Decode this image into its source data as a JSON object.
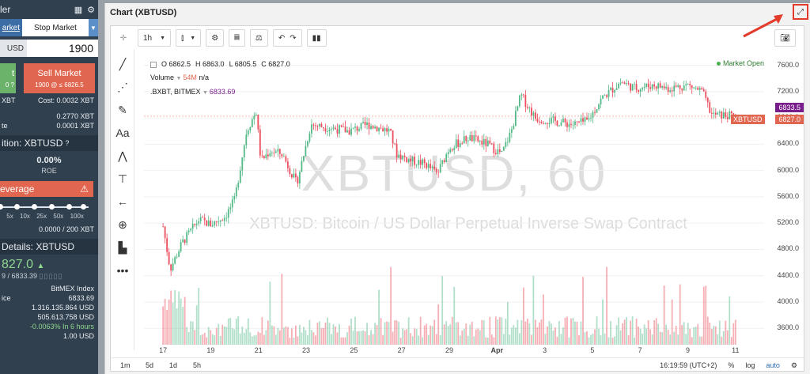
{
  "left_panel": {
    "header_title": "ler",
    "order_tab_limit": "arket",
    "order_tab_stop": "Stop Market",
    "qty_unit": "USD",
    "qty_value": "1900",
    "buy_label": "t",
    "buy_sub": "0 ?",
    "sell_label": "Sell Market",
    "sell_sub": "1900 @ ≤ 6826.5",
    "cost_left": "XBT",
    "cost_right": "Cost: 0.0032 XBT",
    "row1_value": "0.2770 XBT",
    "row2_label": "te",
    "row2_value": "0.0001 XBT",
    "position_title": "ition: XBTUSD",
    "pct_value": "0.00%",
    "roe_label": "ROE",
    "leverage_label": "everage",
    "lev_ticks": [
      "5x",
      "10x",
      "25x",
      "50x",
      "100x"
    ],
    "margin_text": "0.0000 / 200 XBT",
    "details_title": "Details: XBTUSD",
    "last_price": "827.0",
    "mark_line": "9 / 6833.39",
    "index_label": "BitMEX Index",
    "index_price_label": "ice",
    "index_value": "6833.69",
    "volume1": "1.316.135.864 USD",
    "volume2": "505.613.758 USD",
    "funding": "-0.0063% In 6 hours",
    "contract": "1.00 USD"
  },
  "chart_window": {
    "title": "Chart (XBTUSD)",
    "interval": "1h",
    "legend_o": "O 6862.5",
    "legend_h": "H 6863.0",
    "legend_l": "L 6805.5",
    "legend_c": "C 6827.0",
    "volume_label": "Volume",
    "volume_value": "54M",
    "volume_na": "n/a",
    "index_label": ".BXBT, BITMEX",
    "index_value": "6833.69",
    "market_status": "Market Open",
    "watermark_main": "XBTUSD, 60",
    "watermark_sub": "XBTUSD: Bitcoin / US Dollar Perpetual Inverse Swap Contract",
    "price_tag_index": "6833.5",
    "price_tag_symbol": "XBTUSD",
    "price_tag_last": "6827.0",
    "ranges": [
      "1m",
      "5d",
      "1d",
      "5h"
    ],
    "clock": "16:19:59 (UTC+2)",
    "pct_label": "%",
    "log_label": "log",
    "auto_label": "auto"
  },
  "colors": {
    "up": "#53b987",
    "down": "#eb4d5c",
    "sell": "#e0664f",
    "buy": "#6bb36b",
    "index_tag": "#7a1d8c",
    "highlight": "#e33b2c"
  },
  "chart_data": {
    "type": "candlestick",
    "title": "XBTUSD, 60",
    "x_ticks": [
      "17",
      "19",
      "21",
      "23",
      "25",
      "27",
      "29",
      "Apr",
      "3",
      "5",
      "7",
      "9",
      "11"
    ],
    "y_ticks": [
      3600,
      4000,
      4400,
      4800,
      5200,
      5600,
      6000,
      6400,
      6800,
      7200,
      7600
    ],
    "ylim": [
      3350,
      7800
    ],
    "close_path": [
      {
        "x": 0,
        "y": 5150
      },
      {
        "x": 0.3,
        "y": 4500
      },
      {
        "x": 0.8,
        "y": 4900
      },
      {
        "x": 1.5,
        "y": 5250
      },
      {
        "x": 2.0,
        "y": 5180
      },
      {
        "x": 2.6,
        "y": 5300
      },
      {
        "x": 3.0,
        "y": 5550
      },
      {
        "x": 3.5,
        "y": 6600
      },
      {
        "x": 3.9,
        "y": 6900
      },
      {
        "x": 4.1,
        "y": 6150
      },
      {
        "x": 4.5,
        "y": 6300
      },
      {
        "x": 5.0,
        "y": 6250
      },
      {
        "x": 5.6,
        "y": 5800
      },
      {
        "x": 6.2,
        "y": 6700
      },
      {
        "x": 7.0,
        "y": 6650
      },
      {
        "x": 7.8,
        "y": 6600
      },
      {
        "x": 8.6,
        "y": 6700
      },
      {
        "x": 9.5,
        "y": 6600
      },
      {
        "x": 9.8,
        "y": 6250
      },
      {
        "x": 10.4,
        "y": 6150
      },
      {
        "x": 11.0,
        "y": 6100
      },
      {
        "x": 11.5,
        "y": 5950
      },
      {
        "x": 12.0,
        "y": 6350
      },
      {
        "x": 12.8,
        "y": 6500
      },
      {
        "x": 13.6,
        "y": 6400
      },
      {
        "x": 14.2,
        "y": 6250
      },
      {
        "x": 14.6,
        "y": 6600
      },
      {
        "x": 15.0,
        "y": 7150
      },
      {
        "x": 15.6,
        "y": 6800
      },
      {
        "x": 16.4,
        "y": 6750
      },
      {
        "x": 17.2,
        "y": 6700
      },
      {
        "x": 17.8,
        "y": 6750
      },
      {
        "x": 18.4,
        "y": 7100
      },
      {
        "x": 19.2,
        "y": 7350
      },
      {
        "x": 19.8,
        "y": 7250
      },
      {
        "x": 20.6,
        "y": 7300
      },
      {
        "x": 21.2,
        "y": 7250
      },
      {
        "x": 22.0,
        "y": 7300
      },
      {
        "x": 22.6,
        "y": 7200
      },
      {
        "x": 23.0,
        "y": 6850
      },
      {
        "x": 24.0,
        "y": 6827
      }
    ],
    "x_domain": [
      -0.8,
      25.2
    ]
  }
}
